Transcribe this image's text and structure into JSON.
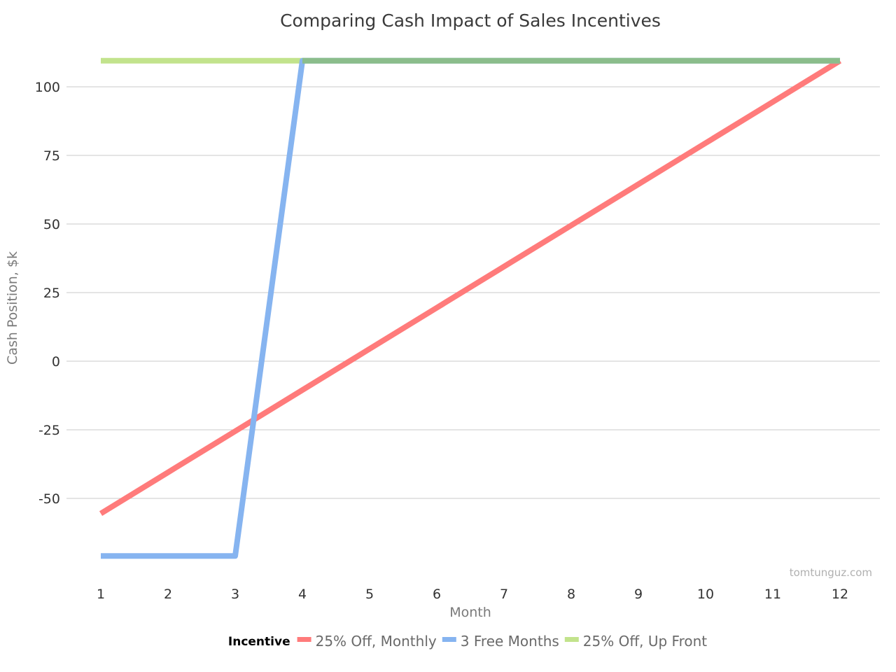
{
  "chart_data": {
    "type": "line",
    "title": "Comparing Cash Impact of Sales Incentives",
    "xlabel": "Month",
    "ylabel": "Cash Position, $k",
    "x": [
      1,
      2,
      3,
      4,
      5,
      6,
      7,
      8,
      9,
      10,
      11,
      12
    ],
    "x_tick_labels": [
      "1",
      "2",
      "3",
      "4",
      "5",
      "6",
      "7",
      "8",
      "9",
      "10",
      "11",
      "12"
    ],
    "ylim": [
      -75,
      110
    ],
    "y_ticks": [
      -50,
      -25,
      0,
      25,
      50,
      75,
      100
    ],
    "y_tick_labels": [
      "-50",
      "-25",
      "0",
      "25",
      "50",
      "75",
      "100"
    ],
    "grid": true,
    "legend_title": "Incentive",
    "legend_position": "bottom",
    "series": [
      {
        "name": "25% Off, Monthly",
        "color": "#ff7b7b",
        "values": [
          -55.5,
          -40.5,
          -25.5,
          -10.5,
          4.5,
          19.5,
          34.5,
          49.5,
          64.5,
          79.5,
          94.5,
          109.5
        ]
      },
      {
        "name": "3 Free Months",
        "color": "#86b4f0",
        "values": [
          -71,
          -71,
          -71,
          109.5,
          109.5,
          109.5,
          109.5,
          109.5,
          109.5,
          109.5,
          109.5,
          109.5
        ]
      },
      {
        "name": "25% Off, Up Front",
        "color": "#c2e38c",
        "values": [
          109.5,
          109.5,
          109.5,
          109.5,
          109.5,
          109.5,
          109.5,
          109.5,
          109.5,
          109.5,
          109.5,
          109.5
        ]
      }
    ],
    "watermark": "tomtunguz.com"
  }
}
